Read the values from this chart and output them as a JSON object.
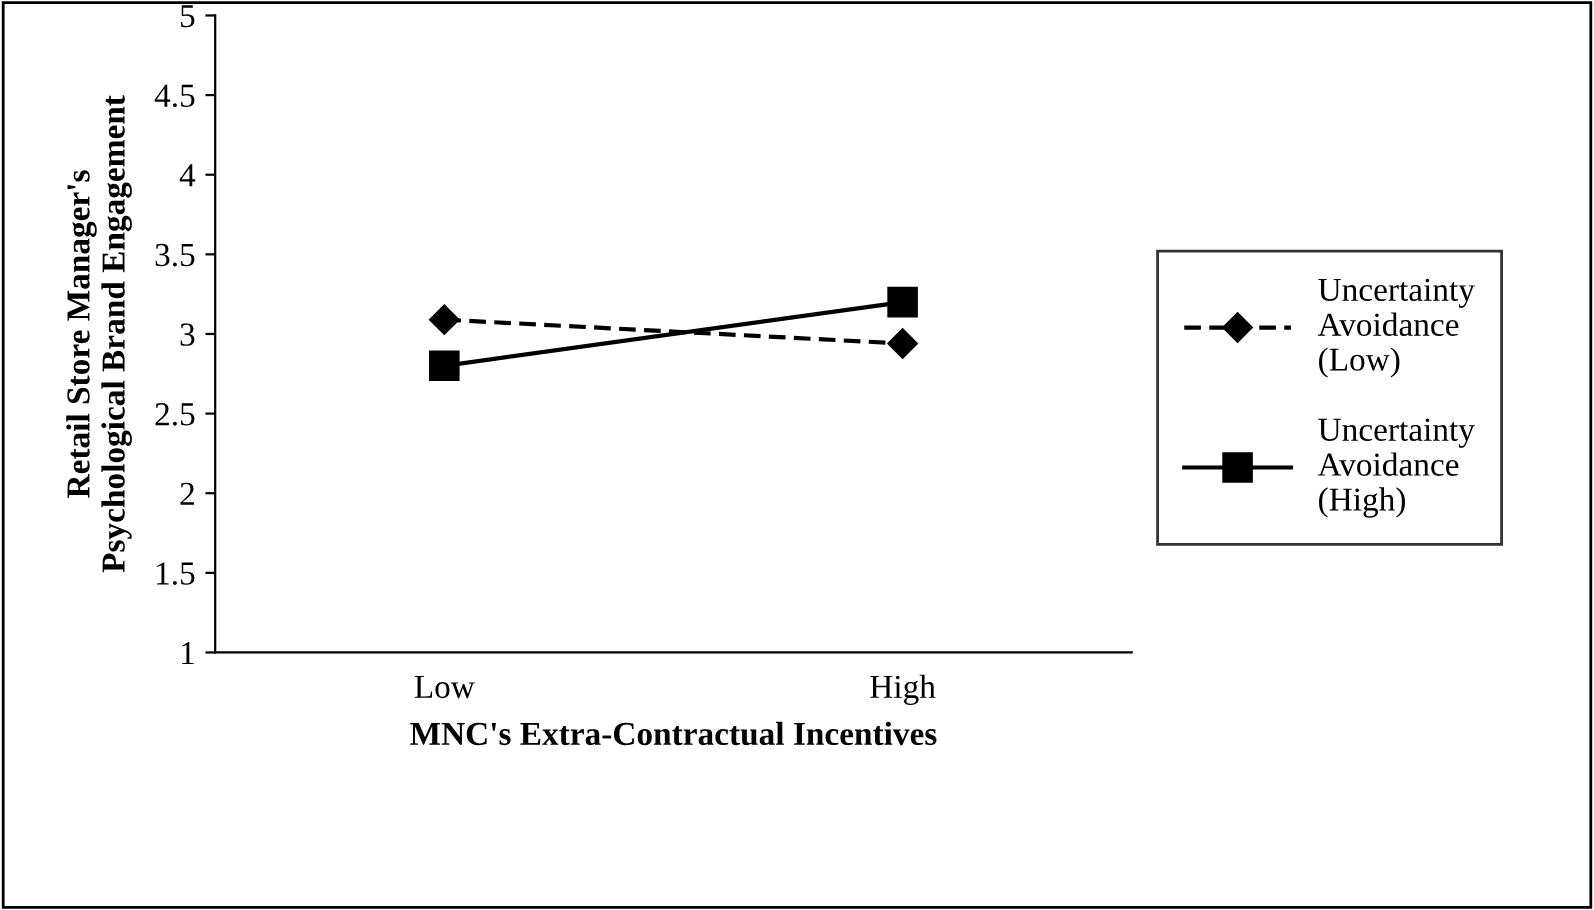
{
  "chart_data": {
    "type": "line",
    "categories": [
      "Low",
      "High"
    ],
    "xlabel": "MNC's Extra-Contractual Incentives",
    "ylabel": "Retail Store Manager's Psychological Brand Engagement",
    "series": [
      {
        "name": "Uncertainty Avoidance (Low)",
        "color": "#000000",
        "values": [
          3.09,
          2.94
        ],
        "marker": "diamond",
        "line_style": "dashed"
      },
      {
        "name": "Uncertainty Avoidance (High)",
        "color": "#000000",
        "values": [
          2.8,
          3.2
        ],
        "marker": "square",
        "line_style": "solid"
      }
    ],
    "ylim": [
      1,
      5
    ],
    "yticks": [
      1,
      1.5,
      2,
      2.5,
      3,
      3.5,
      4,
      4.5,
      5
    ],
    "grid": false,
    "legend": "right"
  }
}
